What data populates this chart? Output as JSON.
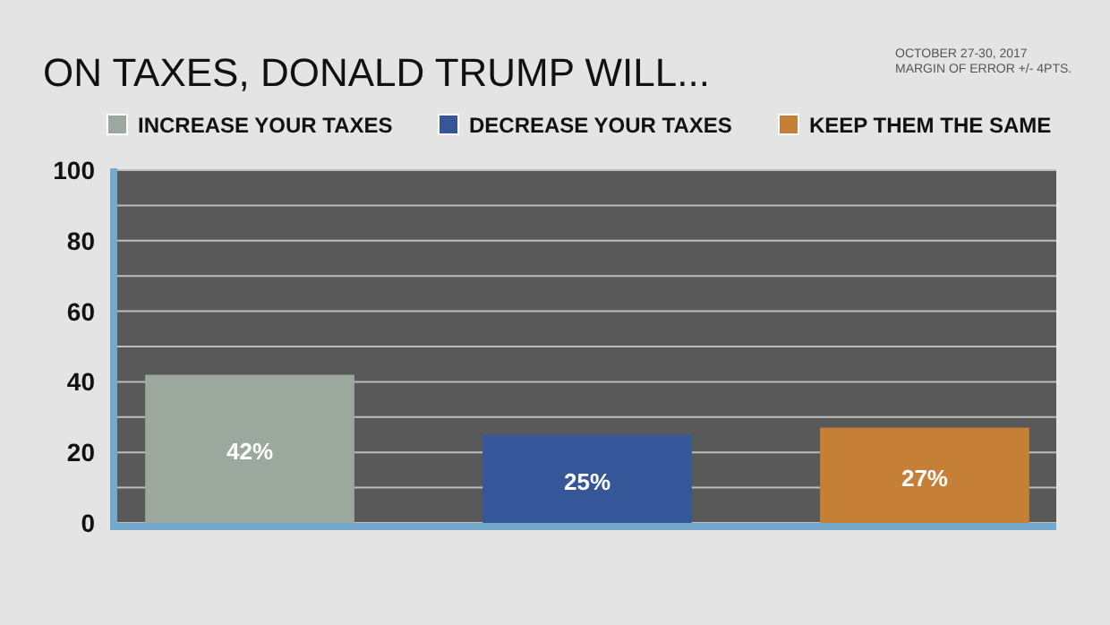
{
  "chart_data": {
    "type": "bar",
    "title": "ON TAXES, DONALD TRUMP WILL...",
    "annotations": [
      "OCTOBER 27-30, 2017",
      "MARGIN OF ERROR +/- 4PTS."
    ],
    "categories": [
      null,
      null,
      null
    ],
    "series": [
      {
        "name": "INCREASE YOUR TAXES",
        "color": "#9aa89d",
        "values": [
          42,
          null,
          null
        ],
        "value_labels": [
          "42%",
          null,
          null
        ]
      },
      {
        "name": "DECREASE YOUR TAXES",
        "color": "#35579a",
        "values": [
          null,
          25,
          null
        ],
        "value_labels": [
          null,
          "25%",
          null
        ]
      },
      {
        "name": "KEEP THEM THE SAME",
        "color": "#c57f37",
        "values": [
          null,
          null,
          27
        ],
        "value_labels": [
          null,
          null,
          "27%"
        ]
      }
    ],
    "ylim": [
      0,
      100
    ],
    "yticks": [
      0,
      {
        "value": 10,
        "label": null
      },
      20,
      {
        "value": 30,
        "label": null
      },
      40,
      {
        "value": 50,
        "label": null
      },
      60,
      {
        "value": 70,
        "label": null
      },
      80,
      {
        "value": 90,
        "label": null
      },
      100
    ],
    "grid": "y",
    "legend": "top"
  }
}
